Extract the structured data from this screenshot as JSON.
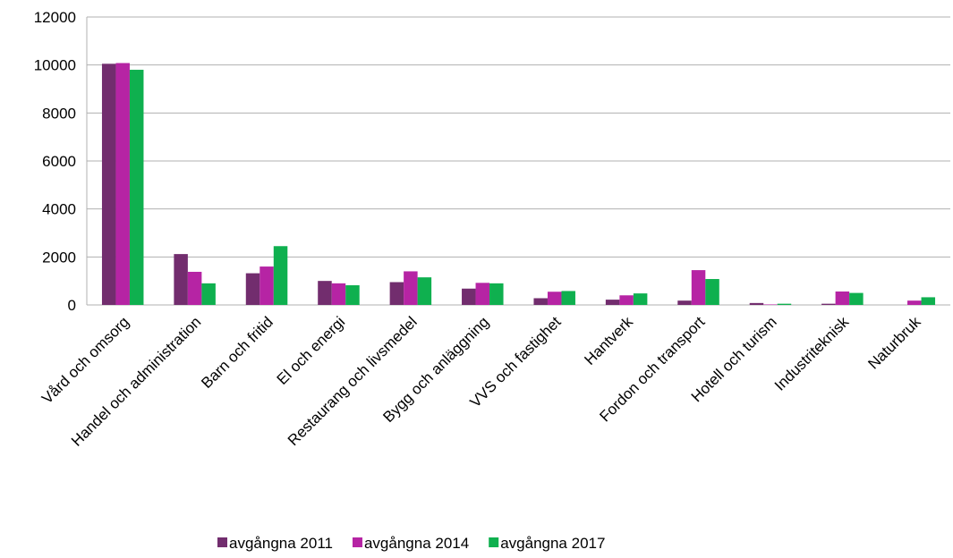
{
  "chart_data": {
    "type": "bar",
    "categories": [
      "Vård och omsorg",
      "Handel och administration",
      "Barn och fritid",
      "El och energi",
      "Restaurang och livsmedel",
      "Bygg och anläggning",
      "VVS och fastighet",
      "Hantverk",
      "Fordon och transport",
      "Hotell och turism",
      "Industriteknisk",
      "Naturbruk"
    ],
    "series": [
      {
        "name": "avgångna 2011",
        "color": "#722d6e",
        "values": [
          10050,
          2120,
          1320,
          1000,
          950,
          680,
          280,
          220,
          180,
          80,
          50,
          0
        ]
      },
      {
        "name": "avgångna 2014",
        "color": "#b624a4",
        "values": [
          10080,
          1380,
          1600,
          900,
          1400,
          920,
          550,
          400,
          1450,
          20,
          560,
          180
        ]
      },
      {
        "name": "avgångna 2017",
        "color": "#0fb04f",
        "values": [
          9800,
          900,
          2450,
          820,
          1150,
          900,
          580,
          480,
          1080,
          50,
          500,
          320
        ]
      }
    ],
    "ylim": [
      0,
      12000
    ],
    "yticks": [
      0,
      2000,
      4000,
      6000,
      8000,
      10000,
      12000
    ],
    "grid": true,
    "legend": "bottom"
  }
}
